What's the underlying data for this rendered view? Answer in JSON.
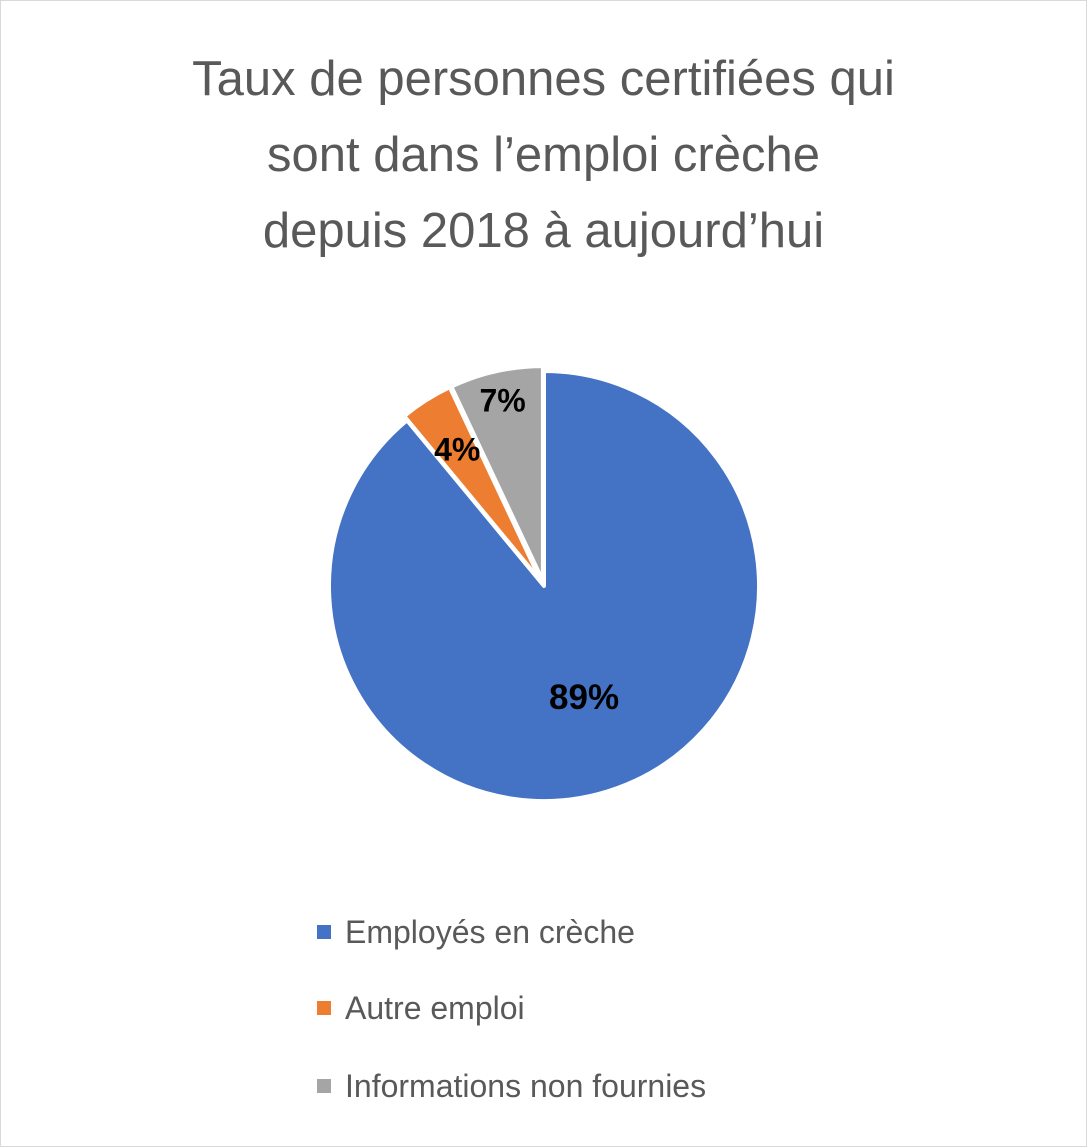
{
  "chart_data": {
    "type": "pie",
    "title_lines": [
      "Taux de personnes certifiées qui",
      "sont dans l’emploi crèche",
      "depuis 2018 à aujourd’hui"
    ],
    "categories": [
      "Employés en crèche",
      "Autre emploi",
      "Informations non fournies"
    ],
    "values": [
      89,
      4,
      7
    ],
    "data_labels": [
      "89%",
      "4%",
      "7%"
    ],
    "colors": [
      "#4472c4",
      "#ed7d31",
      "#a5a5a5"
    ],
    "legend_position": "bottom",
    "start_angle": "top",
    "direction": "clockwise"
  }
}
